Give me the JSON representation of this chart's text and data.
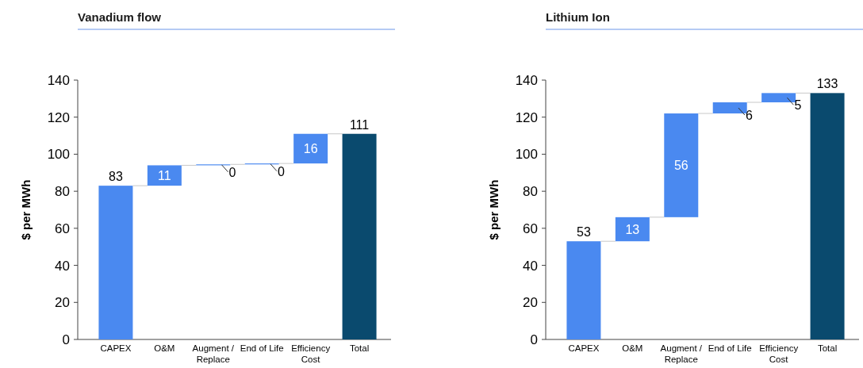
{
  "chart_data": [
    {
      "type": "bar",
      "title": "Vanadium flow",
      "ylabel": "$ per MWh",
      "categories": [
        "CAPEX",
        "O&M",
        "Augment / Replace",
        "End of Life",
        "Efficiency Cost",
        "Total"
      ],
      "values": [
        83,
        11,
        0.5,
        0.5,
        16,
        111
      ],
      "base": [
        0,
        83,
        94,
        94.5,
        95,
        0
      ],
      "value_labels": [
        "83",
        "11",
        "0",
        "0",
        "16",
        "111"
      ],
      "colors": [
        "#4a89f0",
        "#4a89f0",
        "#4a89f0",
        "#4a89f0",
        "#4a89f0",
        "#0a4a6e"
      ],
      "ylim": [
        0,
        140
      ],
      "yticks": [
        0,
        20,
        40,
        60,
        80,
        100,
        120,
        140
      ]
    },
    {
      "type": "bar",
      "title": "Lithium Ion",
      "ylabel": "$ per MWh",
      "categories": [
        "CAPEX",
        "O&M",
        "Augment / Replace",
        "End of Life",
        "Efficiency Cost",
        "Total"
      ],
      "values": [
        53,
        13,
        56,
        6,
        5,
        133
      ],
      "base": [
        0,
        53,
        66,
        122,
        128,
        0
      ],
      "value_labels": [
        "53",
        "13",
        "56",
        "6",
        "5",
        "133"
      ],
      "colors": [
        "#4a89f0",
        "#4a89f0",
        "#4a89f0",
        "#4a89f0",
        "#4a89f0",
        "#0a4a6e"
      ],
      "ylim": [
        0,
        140
      ],
      "yticks": [
        0,
        20,
        40,
        60,
        80,
        100,
        120,
        140
      ]
    }
  ]
}
